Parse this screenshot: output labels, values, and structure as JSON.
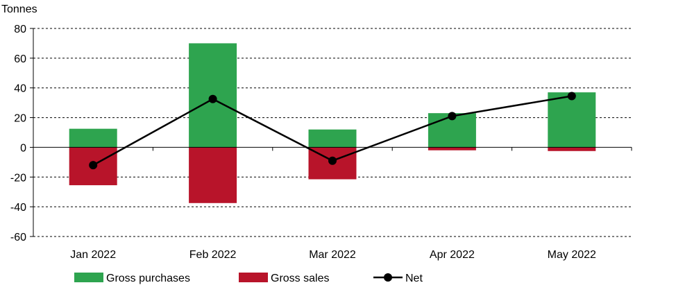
{
  "chart_data": {
    "type": "bar",
    "ylabel": "Tonnes",
    "ylim": [
      -60,
      80
    ],
    "yticks": [
      80,
      60,
      40,
      20,
      0,
      -20,
      -40,
      -60
    ],
    "grid": true,
    "legend_position": "bottom",
    "categories": [
      "Jan 2022",
      "Feb 2022",
      "Mar 2022",
      "Apr 2022",
      "May 2022"
    ],
    "series": [
      {
        "name": "Gross purchases",
        "kind": "bar",
        "color": "#2ea44f",
        "values": [
          12.5,
          70,
          12,
          23,
          37
        ]
      },
      {
        "name": "Gross sales",
        "kind": "bar",
        "color": "#b8142a",
        "values": [
          -25.5,
          -37.5,
          -21.5,
          -2,
          -2.5
        ]
      },
      {
        "name": "Net",
        "kind": "line",
        "color": "#000000",
        "values": [
          -12,
          32.5,
          -9,
          21,
          34.5
        ]
      }
    ]
  }
}
